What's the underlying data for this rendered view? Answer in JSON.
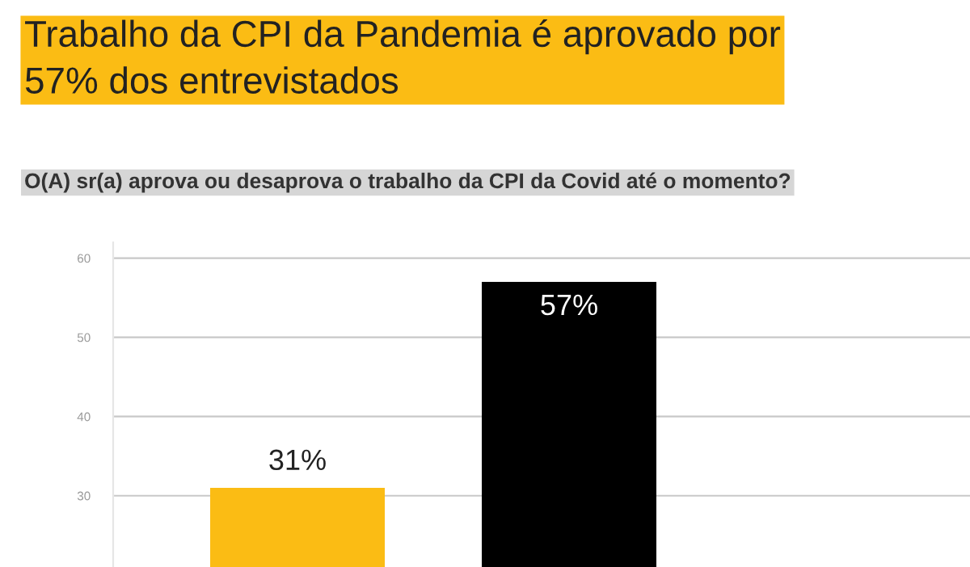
{
  "chart_data": {
    "type": "bar",
    "title": "Trabalho da CPI da Pandemia é aprovado por\n57% dos entrevistados",
    "subtitle": "O(A) sr(a) aprova ou desaprova o trabalho da CPI da Covid até o momento?",
    "categories": [
      null,
      null
    ],
    "values": [
      31,
      57
    ],
    "colors": [
      "#fbbc14",
      "#000000"
    ],
    "value_labels": [
      "31%",
      "57%"
    ],
    "ylim": [
      21,
      62
    ],
    "yticks": [
      30,
      40,
      50,
      60
    ],
    "grid": "y",
    "tick_labels": "y"
  }
}
